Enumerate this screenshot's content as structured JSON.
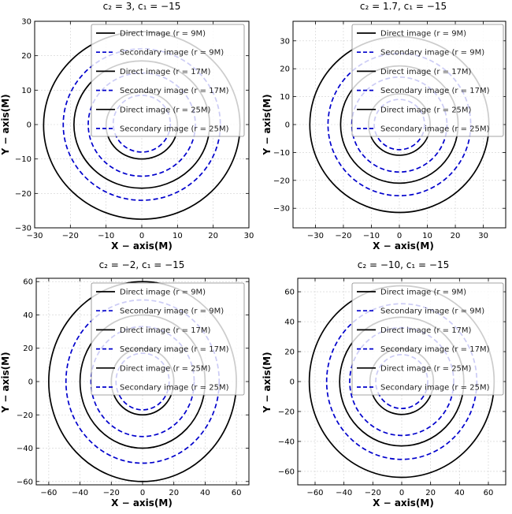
{
  "chart_data": [
    {
      "type": "line",
      "title": "c₂ = 3, c₁ = −15",
      "xlabel": "X − axis(M)",
      "ylabel": "Y − axis(M)",
      "xlim": [
        -30,
        30
      ],
      "ylim": [
        -30,
        30
      ],
      "xticks": [
        -30,
        -20,
        -10,
        0,
        10,
        20,
        30
      ],
      "yticks": [
        -30,
        -20,
        -10,
        0,
        10,
        20,
        30
      ],
      "grid": true,
      "legend_position": "upper-right",
      "series": [
        {
          "name": "Direct image (r = 9M)",
          "style": "solid",
          "color": "#000000",
          "top": 9.5,
          "bottom": -10,
          "half_width": 10
        },
        {
          "name": "Secondary image (r = 9M)",
          "style": "dashed",
          "color": "#0000cc",
          "top": 8.5,
          "bottom": -8,
          "half_width": 8
        },
        {
          "name": "Direct image (r = 17M)",
          "style": "solid",
          "color": "#000000",
          "top": 18.5,
          "bottom": -18.5,
          "half_width": 19
        },
        {
          "name": "Secondary image (r = 17M)",
          "style": "dashed",
          "color": "#0000cc",
          "top": 15,
          "bottom": -15,
          "half_width": 15
        },
        {
          "name": "Direct image (r = 25M)",
          "style": "solid",
          "color": "#000000",
          "top": 27,
          "bottom": -27.5,
          "half_width": 27.5
        },
        {
          "name": "Secondary image (r = 25M)",
          "style": "dashed",
          "color": "#0000cc",
          "top": 22,
          "bottom": -22,
          "half_width": 22
        }
      ]
    },
    {
      "type": "line",
      "title": "c₂ = 1.7, c₁ = −15",
      "xlabel": "X − axis(M)",
      "ylabel": "Y − axis(M)",
      "xlim": [
        -38,
        38
      ],
      "ylim": [
        -37,
        37
      ],
      "xticks": [
        -30,
        -20,
        -10,
        0,
        10,
        20,
        30
      ],
      "yticks": [
        -30,
        -20,
        -10,
        0,
        10,
        20,
        30
      ],
      "grid": true,
      "legend_position": "upper-right",
      "series": [
        {
          "name": "Direct image (r = 9M)",
          "style": "solid",
          "color": "#000000",
          "top": 11,
          "bottom": -11,
          "half_width": 11
        },
        {
          "name": "Secondary image (r = 9M)",
          "style": "dashed",
          "color": "#0000cc",
          "top": 9,
          "bottom": -9,
          "half_width": 9
        },
        {
          "name": "Direct image (r = 17M)",
          "style": "solid",
          "color": "#000000",
          "top": 21,
          "bottom": -21,
          "half_width": 21
        },
        {
          "name": "Secondary image (r = 17M)",
          "style": "dashed",
          "color": "#0000cc",
          "top": 17,
          "bottom": -17,
          "half_width": 17
        },
        {
          "name": "Direct image (r = 25M)",
          "style": "solid",
          "color": "#000000",
          "top": 31.5,
          "bottom": -31.5,
          "half_width": 32
        },
        {
          "name": "Secondary image (r = 25M)",
          "style": "dashed",
          "color": "#0000cc",
          "top": 25.5,
          "bottom": -25.5,
          "half_width": 25.5
        }
      ]
    },
    {
      "type": "line",
      "title": "c₂ = −2, c₁ = −15",
      "xlabel": "X − axis(M)",
      "ylabel": "Y − axis(M)",
      "xlim": [
        -68,
        68
      ],
      "ylim": [
        -62,
        62
      ],
      "xticks": [
        -60,
        -40,
        -20,
        0,
        20,
        40,
        60
      ],
      "yticks": [
        -60,
        -40,
        -20,
        0,
        20,
        40,
        60
      ],
      "grid": true,
      "legend_position": "upper-right",
      "series": [
        {
          "name": "Direct image (r = 9M)",
          "style": "solid",
          "color": "#000000",
          "top": 20,
          "bottom": -20,
          "half_width": 20
        },
        {
          "name": "Secondary image (r = 9M)",
          "style": "dashed",
          "color": "#0000cc",
          "top": 17,
          "bottom": -17,
          "half_width": 17
        },
        {
          "name": "Direct image (r = 17M)",
          "style": "solid",
          "color": "#000000",
          "top": 40,
          "bottom": -40,
          "half_width": 40
        },
        {
          "name": "Secondary image (r = 17M)",
          "style": "dashed",
          "color": "#0000cc",
          "top": 33,
          "bottom": -33,
          "half_width": 33
        },
        {
          "name": "Direct image (r = 25M)",
          "style": "solid",
          "color": "#000000",
          "top": 60,
          "bottom": -60,
          "half_width": 60
        },
        {
          "name": "Secondary image (r = 25M)",
          "style": "dashed",
          "color": "#0000cc",
          "top": 49,
          "bottom": -49,
          "half_width": 49
        }
      ]
    },
    {
      "type": "line",
      "title": "c₂ = −10, c₁ = −15",
      "xlabel": "X − axis(M)",
      "ylabel": "Y − axis(M)",
      "xlim": [
        -72,
        72
      ],
      "ylim": [
        -69,
        69
      ],
      "xticks": [
        -60,
        -40,
        -20,
        0,
        20,
        40,
        60
      ],
      "yticks": [
        -60,
        -40,
        -20,
        0,
        20,
        40,
        60
      ],
      "grid": true,
      "legend_position": "upper-right",
      "series": [
        {
          "name": "Direct image (r = 9M)",
          "style": "solid",
          "color": "#000000",
          "top": 22,
          "bottom": -22,
          "half_width": 22
        },
        {
          "name": "Secondary image (r = 9M)",
          "style": "dashed",
          "color": "#0000cc",
          "top": 18,
          "bottom": -18,
          "half_width": 18
        },
        {
          "name": "Direct image (r = 17M)",
          "style": "solid",
          "color": "#000000",
          "top": 43,
          "bottom": -43,
          "half_width": 43
        },
        {
          "name": "Secondary image (r = 17M)",
          "style": "dashed",
          "color": "#0000cc",
          "top": 36,
          "bottom": -36,
          "half_width": 36
        },
        {
          "name": "Direct image (r = 25M)",
          "style": "solid",
          "color": "#000000",
          "top": 64,
          "bottom": -64,
          "half_width": 64
        },
        {
          "name": "Secondary image (r = 25M)",
          "style": "dashed",
          "color": "#0000cc",
          "top": 52,
          "bottom": -52,
          "half_width": 52
        }
      ]
    }
  ]
}
